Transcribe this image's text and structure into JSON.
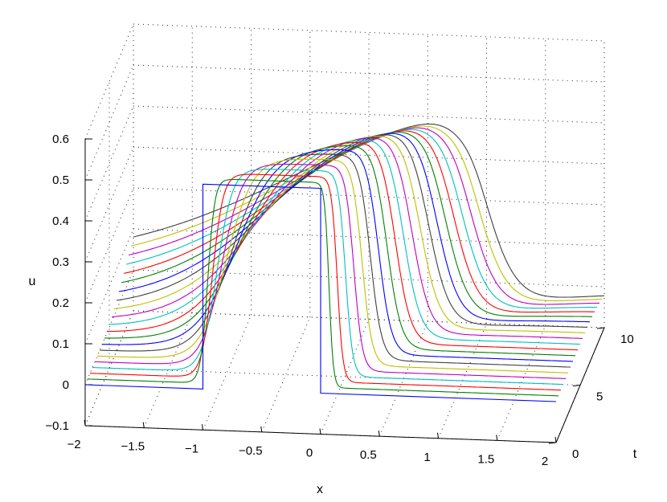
{
  "chart_data": {
    "type": "line",
    "projection": "3d-waterfall",
    "title": "",
    "xlabel": "x",
    "ylabel": "t",
    "zlabel": "u",
    "xlim": [
      -2,
      2
    ],
    "ylim": [
      0,
      10
    ],
    "zlim": [
      -0.1,
      0.6
    ],
    "x_ticks": [
      "−2",
      "−1.5",
      "−1",
      "−0.5",
      "0",
      "0.5",
      "1",
      "1.5",
      "2"
    ],
    "y_ticks": [
      "0",
      "5",
      "10"
    ],
    "z_ticks": [
      "−0.1",
      "0",
      "0.1",
      "0.2",
      "0.3",
      "0.4",
      "0.5",
      "0.6"
    ],
    "x_tick_values": [
      -2,
      -1.5,
      -1,
      -0.5,
      0,
      0.5,
      1,
      1.5,
      2
    ],
    "y_tick_values": [
      0,
      5,
      10
    ],
    "z_tick_values": [
      -0.1,
      0,
      0.1,
      0.2,
      0.3,
      0.4,
      0.5,
      0.6
    ],
    "grid": true,
    "legend": "none",
    "series_colors": [
      "#0000ff",
      "#008000",
      "#ff0000",
      "#00bfbf",
      "#bf00bf",
      "#bfbf00",
      "#404040"
    ],
    "series": [
      {
        "t": 0,
        "left_edge": -1.0,
        "right_edge": 0.0,
        "width": 0.0,
        "height": 0.5,
        "skew": 0.0
      },
      {
        "t": 0.5,
        "left_edge": -0.98,
        "right_edge": 0.05,
        "width": 0.03,
        "height": 0.5,
        "skew": 0.0
      },
      {
        "t": 1,
        "left_edge": -0.96,
        "right_edge": 0.1,
        "width": 0.04,
        "height": 0.5,
        "skew": 0.05
      },
      {
        "t": 1.5,
        "left_edge": -0.94,
        "right_edge": 0.15,
        "width": 0.05,
        "height": 0.5,
        "skew": 0.1
      },
      {
        "t": 2,
        "left_edge": -0.92,
        "right_edge": 0.2,
        "width": 0.06,
        "height": 0.5,
        "skew": 0.15
      },
      {
        "t": 2.5,
        "left_edge": -0.9,
        "right_edge": 0.25,
        "width": 0.07,
        "height": 0.5,
        "skew": 0.2
      },
      {
        "t": 3,
        "left_edge": -0.88,
        "right_edge": 0.3,
        "width": 0.08,
        "height": 0.5,
        "skew": 0.25
      },
      {
        "t": 3.5,
        "left_edge": -0.86,
        "right_edge": 0.35,
        "width": 0.09,
        "height": 0.5,
        "skew": 0.3
      },
      {
        "t": 4,
        "left_edge": -0.84,
        "right_edge": 0.4,
        "width": 0.1,
        "height": 0.5,
        "skew": 0.35
      },
      {
        "t": 4.5,
        "left_edge": -0.82,
        "right_edge": 0.45,
        "width": 0.11,
        "height": 0.5,
        "skew": 0.4
      },
      {
        "t": 5,
        "left_edge": -0.8,
        "right_edge": 0.5,
        "width": 0.12,
        "height": 0.5,
        "skew": 0.45
      },
      {
        "t": 5.5,
        "left_edge": -0.78,
        "right_edge": 0.55,
        "width": 0.13,
        "height": 0.5,
        "skew": 0.5
      },
      {
        "t": 6,
        "left_edge": -0.76,
        "right_edge": 0.6,
        "width": 0.14,
        "height": 0.5,
        "skew": 0.55
      },
      {
        "t": 6.5,
        "left_edge": -0.74,
        "right_edge": 0.65,
        "width": 0.15,
        "height": 0.5,
        "skew": 0.6
      },
      {
        "t": 7,
        "left_edge": -0.72,
        "right_edge": 0.7,
        "width": 0.16,
        "height": 0.5,
        "skew": 0.65
      },
      {
        "t": 7.5,
        "left_edge": -0.7,
        "right_edge": 0.75,
        "width": 0.17,
        "height": 0.5,
        "skew": 0.7
      },
      {
        "t": 8,
        "left_edge": -0.68,
        "right_edge": 0.8,
        "width": 0.18,
        "height": 0.5,
        "skew": 0.75
      },
      {
        "t": 8.5,
        "left_edge": -0.66,
        "right_edge": 0.85,
        "width": 0.19,
        "height": 0.5,
        "skew": 0.8
      },
      {
        "t": 9,
        "left_edge": -0.64,
        "right_edge": 0.9,
        "width": 0.2,
        "height": 0.5,
        "skew": 0.85
      },
      {
        "t": 9.5,
        "left_edge": -0.62,
        "right_edge": 0.95,
        "width": 0.21,
        "height": 0.5,
        "skew": 0.9
      },
      {
        "t": 10,
        "left_edge": -0.6,
        "right_edge": 1.0,
        "width": 0.22,
        "height": 0.5,
        "skew": 0.95
      }
    ]
  }
}
